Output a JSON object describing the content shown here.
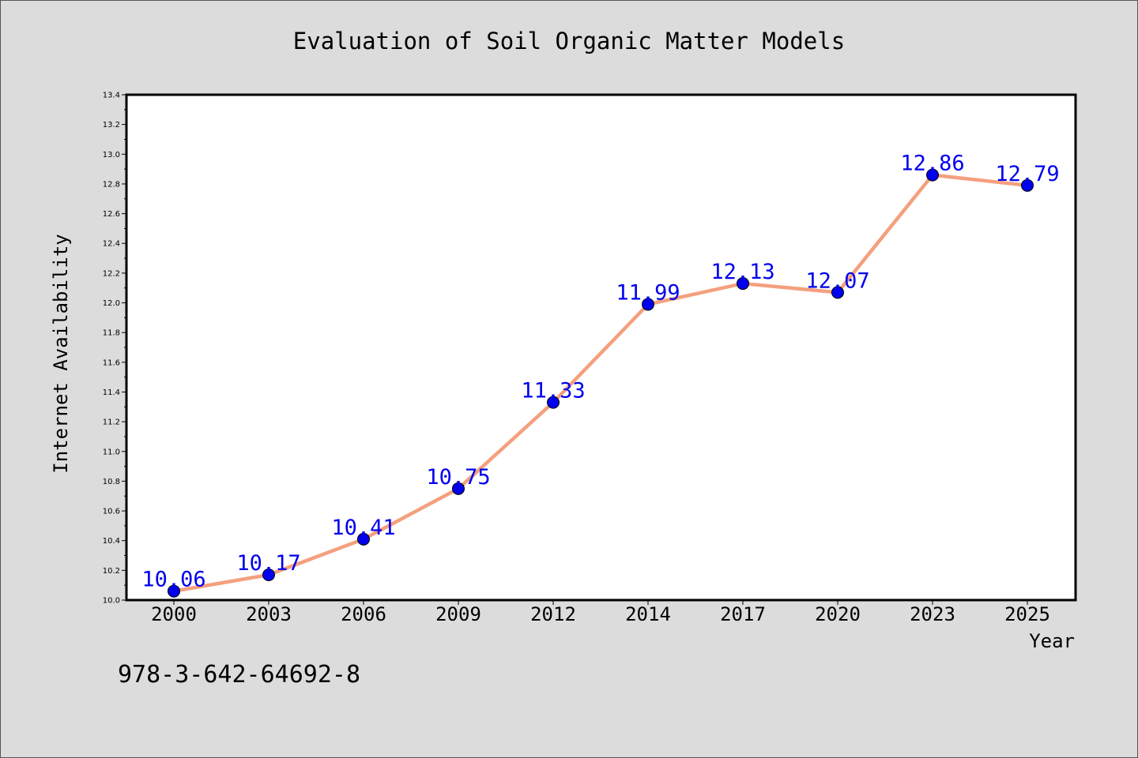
{
  "chart_data": {
    "type": "line",
    "title": "Evaluation of Soil Organic Matter Models",
    "xlabel": "Year",
    "ylabel": "Internet Availability",
    "categories": [
      "2000",
      "2003",
      "2006",
      "2009",
      "2012",
      "2014",
      "2017",
      "2020",
      "2023",
      "2025"
    ],
    "series": [
      {
        "values": [
          10.06,
          10.17,
          10.41,
          10.75,
          11.33,
          11.99,
          12.13,
          12.07,
          12.86,
          12.79
        ],
        "data_labels": [
          "10.06",
          "10.17",
          "10.41",
          "10.75",
          "11.33",
          "11.99",
          "12.13",
          "12.07",
          "12.86",
          "12.79"
        ],
        "line_color": "#f4a07e",
        "marker_color": "#0000ee",
        "label_color": "#0000ee"
      }
    ],
    "ylim": [
      10.0,
      13.4
    ],
    "yticks": [
      "10.0",
      "10.2",
      "10.4",
      "10.6",
      "10.8",
      "11.0",
      "11.2",
      "11.4",
      "11.6",
      "11.8",
      "12.0",
      "12.2",
      "12.4",
      "12.6",
      "12.8",
      "13.0",
      "13.2",
      "13.4"
    ],
    "grid": false,
    "legend": "none",
    "annotations": [
      "978-3-642-64692-8"
    ],
    "colors": {
      "background": "#dcdcdc",
      "plot_area": "#ffffff",
      "axis": "#000000"
    }
  }
}
